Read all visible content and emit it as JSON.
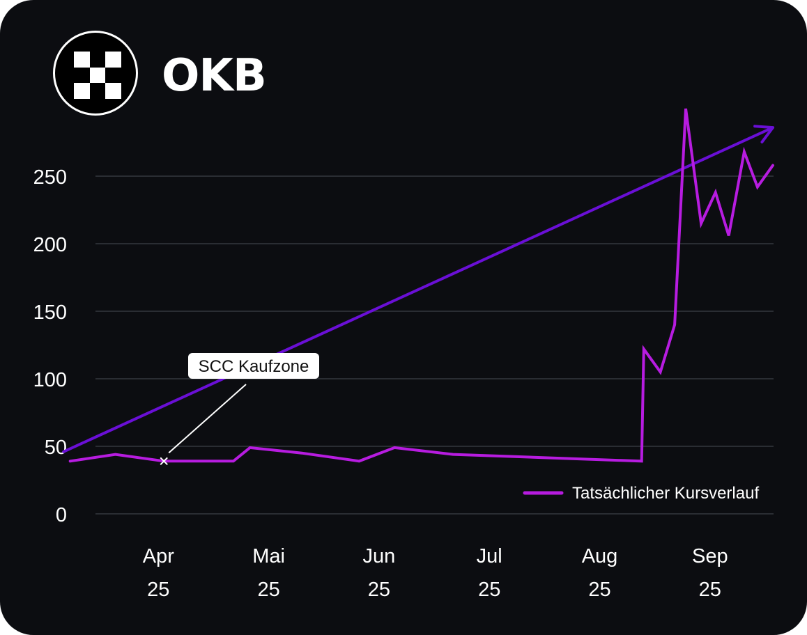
{
  "header": {
    "title": "OKB",
    "logo_icon": "okx-checker-logo-icon"
  },
  "colors": {
    "background": "#0c0d11",
    "trend": "#6a0fd6",
    "actual": "#b71ce0",
    "grid": "#2a2d33"
  },
  "chart_data": {
    "type": "line",
    "ylim": [
      0,
      300
    ],
    "yticks": [
      0,
      50,
      100,
      150,
      200,
      250
    ],
    "xlim": [
      0,
      7.2
    ],
    "x_ticks": [
      {
        "month": "Apr",
        "year": "25",
        "x": 1
      },
      {
        "month": "Mai",
        "year": "25",
        "x": 2
      },
      {
        "month": "Jun",
        "year": "25",
        "x": 3
      },
      {
        "month": "Jul",
        "year": "25",
        "x": 4
      },
      {
        "month": "Aug",
        "year": "25",
        "x": 5
      },
      {
        "month": "Sep",
        "year": "25",
        "x": 6
      }
    ],
    "series": [
      {
        "name": "Tatsächlicher Kursverlauf",
        "points": [
          [
            0.2,
            39
          ],
          [
            0.61,
            44
          ],
          [
            1.05,
            39
          ],
          [
            1.43,
            39
          ],
          [
            1.68,
            39
          ],
          [
            1.83,
            49
          ],
          [
            2.3,
            45
          ],
          [
            2.82,
            39
          ],
          [
            3.14,
            49
          ],
          [
            3.67,
            44
          ],
          [
            5.38,
            39
          ],
          [
            5.4,
            122
          ],
          [
            5.55,
            105
          ],
          [
            5.68,
            140
          ],
          [
            5.78,
            300
          ],
          [
            5.92,
            215
          ],
          [
            6.05,
            238
          ],
          [
            6.17,
            206
          ],
          [
            6.31,
            268
          ],
          [
            6.43,
            242
          ],
          [
            6.57,
            258
          ]
        ]
      }
    ],
    "trend_line": {
      "points": [
        [
          0.14,
          46
        ],
        [
          6.57,
          286
        ]
      ]
    },
    "annotations": [
      {
        "text": "SCC Kaufzone",
        "x": 1.05,
        "y": 39,
        "marker": "x"
      }
    ],
    "legend": {
      "position": "bottom-right",
      "label": "Tatsächlicher Kursverlauf"
    }
  }
}
